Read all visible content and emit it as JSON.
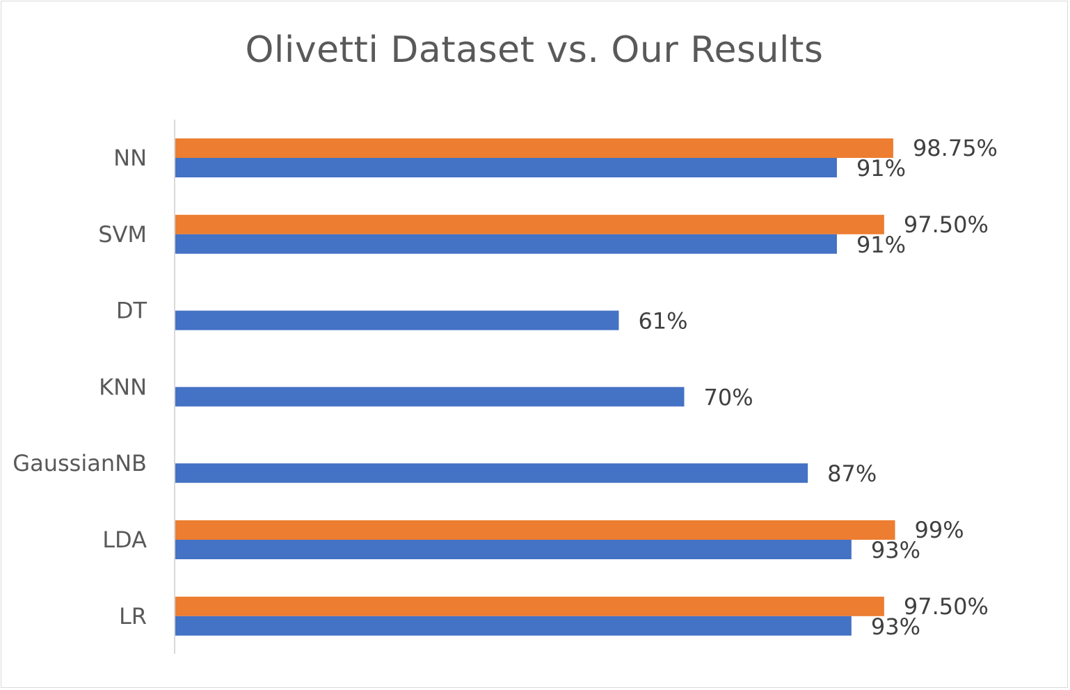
{
  "chart_data": {
    "type": "bar",
    "orientation": "horizontal",
    "title": "Olivetti Dataset vs. Our Results",
    "xlabel": "",
    "ylabel": "",
    "xlim": [
      0,
      100
    ],
    "grid": false,
    "legend": "none",
    "categories": [
      "NN",
      "SVM",
      "DT",
      "KNN",
      "GaussianNB",
      "LDA",
      "LR"
    ],
    "series": [
      {
        "color": "#4472C4",
        "values": [
          91,
          91,
          61,
          70,
          87,
          93,
          93
        ],
        "labels": [
          "91%",
          "91%",
          "61%",
          "70%",
          "87%",
          "93%",
          "93%"
        ]
      },
      {
        "color": "#ED7D31",
        "values": [
          98.75,
          97.5,
          null,
          null,
          null,
          99,
          97.5
        ],
        "labels": [
          "98.75%",
          "97.50%",
          null,
          null,
          null,
          "99%",
          "97.50%"
        ]
      }
    ]
  }
}
